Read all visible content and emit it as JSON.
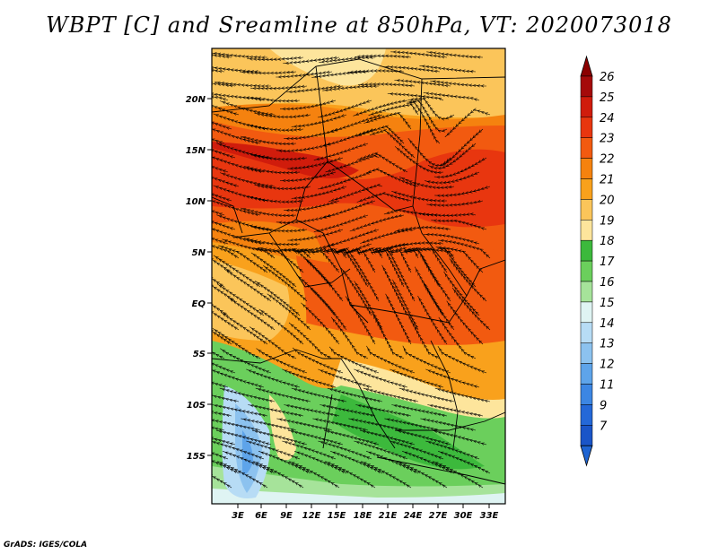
{
  "title": "WBPT [C] and Sreamline at 850hPa, VT: 2020073018",
  "credit": "GrADS: IGES/COLA",
  "x_ticks": [
    "3E",
    "6E",
    "9E",
    "12E",
    "15E",
    "18E",
    "21E",
    "24E",
    "27E",
    "30E",
    "33E"
  ],
  "y_ticks": [
    "20N",
    "15N",
    "10N",
    "5N",
    "EQ",
    "5S",
    "10S",
    "15S"
  ],
  "colorbar": {
    "levels": [
      {
        "label": "26",
        "color": "#a50a0a"
      },
      {
        "label": "25",
        "color": "#d01c0c"
      },
      {
        "label": "24",
        "color": "#e8360f"
      },
      {
        "label": "23",
        "color": "#f25a10"
      },
      {
        "label": "22",
        "color": "#f5820f"
      },
      {
        "label": "21",
        "color": "#f9a11c"
      },
      {
        "label": "20",
        "color": "#fbc55a"
      },
      {
        "label": "19",
        "color": "#fde59c"
      },
      {
        "label": "18",
        "color": "#3cb93c"
      },
      {
        "label": "17",
        "color": "#6bcf5c"
      },
      {
        "label": "16",
        "color": "#a6e39a"
      },
      {
        "label": "15",
        "color": "#dff4f3"
      },
      {
        "label": "14",
        "color": "#b7dcf5"
      },
      {
        "label": "13",
        "color": "#8cc2ef"
      },
      {
        "label": "12",
        "color": "#5ea4ea"
      },
      {
        "label": "11",
        "color": "#3c86e3"
      },
      {
        "label": "9",
        "color": "#2468d8"
      },
      {
        "label": "7",
        "color": "#1a55c8"
      }
    ],
    "top_arrow_color": "#8b0000",
    "bottom_arrow_color": "#1e64d2"
  }
}
